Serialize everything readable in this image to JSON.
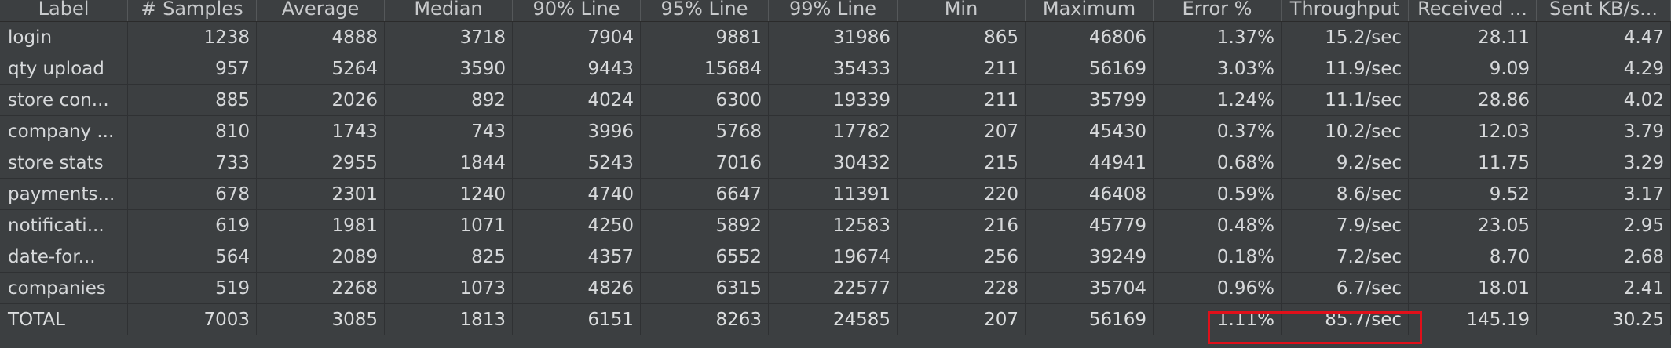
{
  "headers": [
    "Label",
    "# Samples",
    "Average",
    "Median",
    "90% Line",
    "95% Line",
    "99% Line",
    "Min",
    "Maximum",
    "Error %",
    "Throughput",
    "Received ...",
    "Sent KB/s..."
  ],
  "rows": [
    [
      "login",
      "1238",
      "4888",
      "3718",
      "7904",
      "9881",
      "31986",
      "865",
      "46806",
      "1.37%",
      "15.2/sec",
      "28.11",
      "4.47"
    ],
    [
      "qty upload",
      "957",
      "5264",
      "3590",
      "9443",
      "15684",
      "35433",
      "211",
      "56169",
      "3.03%",
      "11.9/sec",
      "9.09",
      "4.29"
    ],
    [
      "store con...",
      "885",
      "2026",
      "892",
      "4024",
      "6300",
      "19339",
      "211",
      "35799",
      "1.24%",
      "11.1/sec",
      "28.86",
      "4.02"
    ],
    [
      "company ...",
      "810",
      "1743",
      "743",
      "3996",
      "5768",
      "17782",
      "207",
      "45430",
      "0.37%",
      "10.2/sec",
      "12.03",
      "3.79"
    ],
    [
      "store stats",
      "733",
      "2955",
      "1844",
      "5243",
      "7016",
      "30432",
      "215",
      "44941",
      "0.68%",
      "9.2/sec",
      "11.75",
      "3.29"
    ],
    [
      "payments...",
      "678",
      "2301",
      "1240",
      "4740",
      "6647",
      "11391",
      "220",
      "46408",
      "0.59%",
      "8.6/sec",
      "9.52",
      "3.17"
    ],
    [
      "notificati...",
      "619",
      "1981",
      "1071",
      "4250",
      "5892",
      "12583",
      "216",
      "45779",
      "0.48%",
      "7.9/sec",
      "23.05",
      "2.95"
    ],
    [
      "date-for...",
      "564",
      "2089",
      "825",
      "4357",
      "6552",
      "19674",
      "256",
      "39249",
      "0.18%",
      "7.2/sec",
      "8.70",
      "2.68"
    ],
    [
      "companies",
      "519",
      "2268",
      "1073",
      "4826",
      "6315",
      "22577",
      "228",
      "35704",
      "0.96%",
      "6.7/sec",
      "18.01",
      "2.41"
    ]
  ],
  "total": [
    "TOTAL",
    "7003",
    "3085",
    "1813",
    "6151",
    "8263",
    "24585",
    "207",
    "56169",
    "1.11%",
    "85.7/sec",
    "145.19",
    "30.25"
  ],
  "colors": {
    "background": "#3c3f41",
    "text": "#d7d9db",
    "highlight": "#e0101a"
  }
}
